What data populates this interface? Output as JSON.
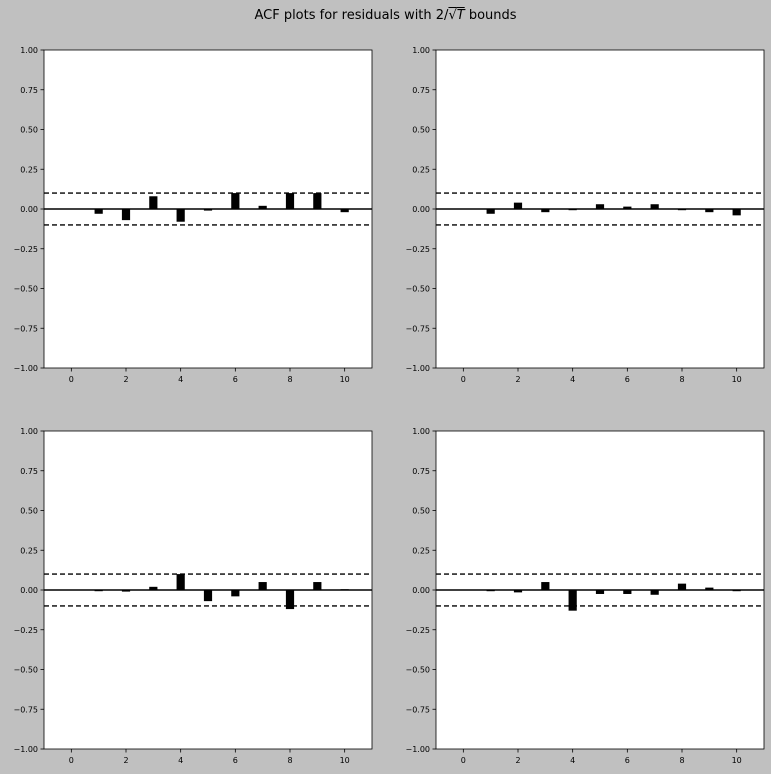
{
  "figure": {
    "title_prefix": "ACF plots for residuals with 2/",
    "title_sqrt": "T",
    "title_suffix": " bounds"
  },
  "chart_data": [
    {
      "type": "bar",
      "x": [
        1,
        2,
        3,
        4,
        5,
        6,
        7,
        8,
        9,
        10
      ],
      "values": [
        -0.03,
        -0.07,
        0.08,
        -0.08,
        -0.01,
        0.1,
        0.02,
        0.1,
        0.1,
        -0.02
      ],
      "bounds": [
        0.1,
        -0.1
      ],
      "xlim": [
        -1,
        11
      ],
      "ylim": [
        -1,
        1
      ],
      "xticks": [
        0,
        2,
        4,
        6,
        8,
        10
      ],
      "yticks": [
        -1.0,
        -0.75,
        -0.5,
        -0.25,
        0.0,
        0.25,
        0.5,
        0.75,
        1.0
      ],
      "ytick_labels": [
        "−1.00",
        "−0.75",
        "−0.50",
        "−0.25",
        "0.00",
        "0.25",
        "0.50",
        "0.75",
        "1.00"
      ]
    },
    {
      "type": "bar",
      "x": [
        1,
        2,
        3,
        4,
        5,
        6,
        7,
        8,
        9,
        10
      ],
      "values": [
        -0.03,
        0.04,
        -0.02,
        0.0,
        0.03,
        0.015,
        0.03,
        0.0,
        -0.02,
        -0.04
      ],
      "bounds": [
        0.1,
        -0.1
      ],
      "xlim": [
        -1,
        11
      ],
      "ylim": [
        -1,
        1
      ],
      "xticks": [
        0,
        2,
        4,
        6,
        8,
        10
      ],
      "yticks": [
        -1.0,
        -0.75,
        -0.5,
        -0.25,
        0.0,
        0.25,
        0.5,
        0.75,
        1.0
      ],
      "ytick_labels": [
        "−1.00",
        "−0.75",
        "−0.50",
        "−0.25",
        "0.00",
        "0.25",
        "0.50",
        "0.75",
        "1.00"
      ]
    },
    {
      "type": "bar",
      "x": [
        1,
        2,
        3,
        4,
        5,
        6,
        7,
        8,
        9,
        10
      ],
      "values": [
        -0.005,
        -0.01,
        0.02,
        0.1,
        -0.07,
        -0.04,
        0.05,
        -0.12,
        0.05,
        0.005
      ],
      "bounds": [
        0.1,
        -0.1
      ],
      "xlim": [
        -1,
        11
      ],
      "ylim": [
        -1,
        1
      ],
      "xticks": [
        0,
        2,
        4,
        6,
        8,
        10
      ],
      "yticks": [
        -1.0,
        -0.75,
        -0.5,
        -0.25,
        0.0,
        0.25,
        0.5,
        0.75,
        1.0
      ],
      "ytick_labels": [
        "−1.00",
        "−0.75",
        "−0.50",
        "−0.25",
        "0.00",
        "0.25",
        "0.50",
        "0.75",
        "1.00"
      ]
    },
    {
      "type": "bar",
      "x": [
        1,
        2,
        3,
        4,
        5,
        6,
        7,
        8,
        9,
        10
      ],
      "values": [
        0.0,
        -0.015,
        0.05,
        -0.13,
        -0.025,
        -0.025,
        -0.03,
        0.04,
        0.015,
        0.0
      ],
      "bounds": [
        0.1,
        -0.1
      ],
      "xlim": [
        -1,
        11
      ],
      "ylim": [
        -1,
        1
      ],
      "xticks": [
        0,
        2,
        4,
        6,
        8,
        10
      ],
      "yticks": [
        -1.0,
        -0.75,
        -0.5,
        -0.25,
        0.0,
        0.25,
        0.5,
        0.75,
        1.0
      ],
      "ytick_labels": [
        "−1.00",
        "−0.75",
        "−0.50",
        "−0.25",
        "0.00",
        "0.25",
        "0.50",
        "0.75",
        "1.00"
      ]
    }
  ]
}
